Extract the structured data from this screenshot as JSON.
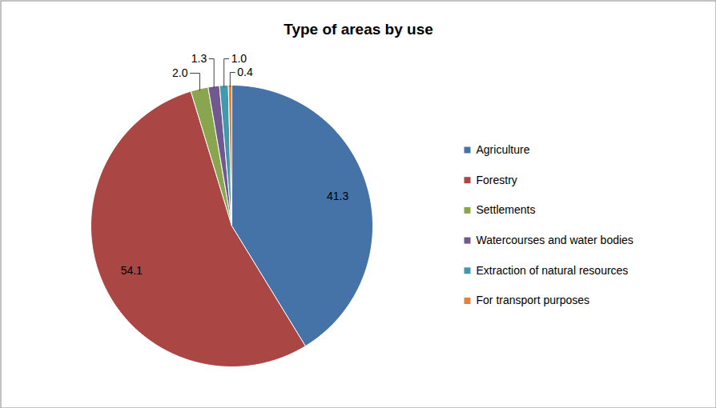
{
  "chart_data": {
    "type": "pie",
    "title": "Type of areas by use",
    "categories": [
      "Agriculture",
      "Forestry",
      "Settlements",
      "Watercourses and water bodies",
      "Extraction of natural resources",
      "For transport purposes"
    ],
    "values": [
      41.3,
      54.1,
      2.0,
      1.3,
      1.0,
      0.4
    ],
    "value_labels": [
      "41.3",
      "54.1",
      "2.0",
      "1.3",
      "1.0",
      "0.4"
    ],
    "colors": [
      "#4572A7",
      "#AA4643",
      "#89A54E",
      "#71588F",
      "#4198AF",
      "#DB843D"
    ],
    "data_labels": true,
    "legend": "right"
  }
}
